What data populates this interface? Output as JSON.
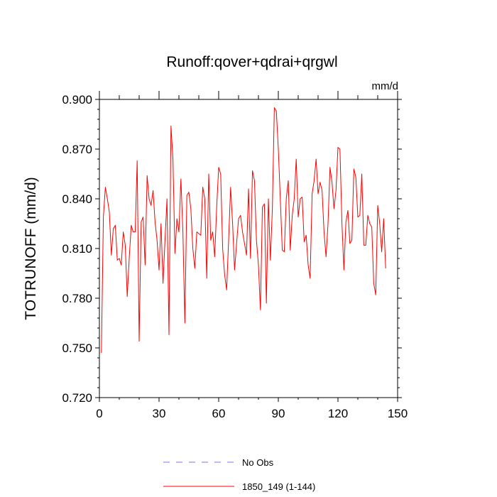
{
  "chart_data": {
    "type": "line",
    "title": "Runoff:qover+qdrai+qrgwl",
    "units": "mm/d",
    "xlabel": "",
    "ylabel": "TOTRUNOFF  (mm/d)",
    "xlim": [
      0,
      150
    ],
    "ylim": [
      0.72,
      0.9
    ],
    "xticks": [
      "0",
      "30",
      "60",
      "90",
      "120",
      "150"
    ],
    "yticks": [
      "0.720",
      "0.750",
      "0.780",
      "0.810",
      "0.840",
      "0.870",
      "0.900"
    ],
    "grid": false,
    "legend_position": "bottom",
    "series": [
      {
        "name": "No Obs",
        "color": "#7777ee",
        "style": "dashed",
        "values": []
      },
      {
        "name": "1850_149 (1-144)",
        "color": "#ff0000",
        "style": "solid",
        "x": [
          1,
          2,
          3,
          4,
          5,
          6,
          7,
          8,
          9,
          10,
          11,
          12,
          13,
          14,
          15,
          16,
          17,
          18,
          19,
          20,
          21,
          22,
          23,
          24,
          25,
          26,
          27,
          28,
          29,
          30,
          31,
          32,
          33,
          34,
          35,
          36,
          37,
          38,
          39,
          40,
          41,
          42,
          43,
          44,
          45,
          46,
          47,
          48,
          49,
          50,
          51,
          52,
          53,
          54,
          55,
          56,
          57,
          58,
          59,
          60,
          61,
          62,
          63,
          64,
          65,
          66,
          67,
          68,
          69,
          70,
          71,
          72,
          73,
          74,
          75,
          76,
          77,
          78,
          79,
          80,
          81,
          82,
          83,
          84,
          85,
          86,
          87,
          88,
          89,
          90,
          91,
          92,
          93,
          94,
          95,
          96,
          97,
          98,
          99,
          100,
          101,
          102,
          103,
          104,
          105,
          106,
          107,
          108,
          109,
          110,
          111,
          112,
          113,
          114,
          115,
          116,
          117,
          118,
          119,
          120,
          121,
          122,
          123,
          124,
          125,
          126,
          127,
          128,
          129,
          130,
          131,
          132,
          133,
          134,
          135,
          136,
          137,
          138,
          139,
          140,
          141,
          142,
          143,
          144
        ],
        "values": [
          0.747,
          0.829,
          0.847,
          0.84,
          0.832,
          0.806,
          0.822,
          0.824,
          0.803,
          0.804,
          0.8,
          0.82,
          0.812,
          0.781,
          0.804,
          0.824,
          0.82,
          0.82,
          0.863,
          0.754,
          0.826,
          0.829,
          0.8,
          0.854,
          0.84,
          0.836,
          0.845,
          0.826,
          0.815,
          0.797,
          0.825,
          0.789,
          0.815,
          0.84,
          0.758,
          0.884,
          0.864,
          0.807,
          0.828,
          0.82,
          0.852,
          0.82,
          0.765,
          0.842,
          0.844,
          0.834,
          0.81,
          0.798,
          0.82,
          0.819,
          0.818,
          0.847,
          0.84,
          0.792,
          0.855,
          0.815,
          0.82,
          0.805,
          0.835,
          0.859,
          0.855,
          0.81,
          0.794,
          0.785,
          0.815,
          0.847,
          0.825,
          0.797,
          0.813,
          0.828,
          0.83,
          0.82,
          0.813,
          0.806,
          0.846,
          0.804,
          0.857,
          0.851,
          0.815,
          0.8,
          0.773,
          0.835,
          0.837,
          0.777,
          0.84,
          0.803,
          0.834,
          0.895,
          0.893,
          0.87,
          0.84,
          0.809,
          0.808,
          0.84,
          0.851,
          0.809,
          0.83,
          0.84,
          0.864,
          0.829,
          0.84,
          0.841,
          0.814,
          0.818,
          0.8,
          0.792,
          0.843,
          0.851,
          0.864,
          0.843,
          0.85,
          0.845,
          0.82,
          0.805,
          0.825,
          0.859,
          0.85,
          0.834,
          0.845,
          0.871,
          0.87,
          0.825,
          0.797,
          0.826,
          0.833,
          0.813,
          0.815,
          0.858,
          0.853,
          0.829,
          0.83,
          0.855,
          0.812,
          0.812,
          0.83,
          0.825,
          0.823,
          0.789,
          0.782,
          0.836,
          0.825,
          0.808,
          0.828,
          0.798
        ]
      }
    ]
  }
}
